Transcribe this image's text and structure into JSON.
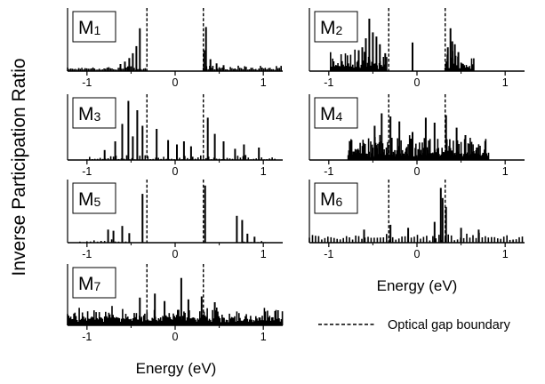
{
  "figure": {
    "ylabel": "Inverse Participation Ratio",
    "xlabel_left": "Energy (eV)",
    "xlabel_right": "Energy (eV)",
    "legend_label": "Optical gap boundary"
  },
  "chart_data": {
    "type": "bar",
    "x_ticks": [
      -1,
      0,
      1
    ],
    "x_tick_labels": [
      "-1",
      "0",
      "1"
    ],
    "xlim": [
      -1.22,
      1.22
    ],
    "gap_boundaries": [
      -0.32,
      0.32
    ],
    "grid": false,
    "legend_position": "bottom-right",
    "panels": [
      {
        "name": "M",
        "sub": "1",
        "spikes": [
          {
            "x": -0.4,
            "y": 0.72
          },
          {
            "x": -0.44,
            "y": 0.42
          },
          {
            "x": -0.48,
            "y": 0.3
          },
          {
            "x": -0.52,
            "y": 0.22
          },
          {
            "x": -0.57,
            "y": 0.16
          },
          {
            "x": -0.62,
            "y": 0.12
          },
          {
            "x": 0.35,
            "y": 0.74
          },
          {
            "x": 0.33,
            "y": 0.35
          },
          {
            "x": 0.4,
            "y": 0.2
          },
          {
            "x": 0.47,
            "y": 0.13
          },
          {
            "x": 0.55,
            "y": 0.1
          }
        ],
        "noise": {
          "ranges": [
            [
              -1.22,
              -0.32
            ],
            [
              0.32,
              1.22
            ]
          ],
          "step": 0.018,
          "base": 0.05,
          "amp": 0.06
        }
      },
      {
        "name": "M",
        "sub": "2",
        "spikes": [
          {
            "x": -0.54,
            "y": 0.88
          },
          {
            "x": -0.58,
            "y": 0.55
          },
          {
            "x": -0.5,
            "y": 0.65
          },
          {
            "x": -0.46,
            "y": 0.58
          },
          {
            "x": -0.62,
            "y": 0.4
          },
          {
            "x": -0.42,
            "y": 0.45
          },
          {
            "x": -0.66,
            "y": 0.35
          },
          {
            "x": -0.36,
            "y": 0.3
          },
          {
            "x": -0.05,
            "y": 0.48
          },
          {
            "x": 0.38,
            "y": 0.72
          },
          {
            "x": 0.4,
            "y": 0.5
          },
          {
            "x": 0.43,
            "y": 0.45
          },
          {
            "x": 0.35,
            "y": 0.4
          },
          {
            "x": 0.47,
            "y": 0.32
          }
        ],
        "noise": {
          "ranges": [
            [
              -0.98,
              -0.34
            ],
            [
              0.32,
              0.65
            ]
          ],
          "step": 0.012,
          "base": 0.1,
          "amp": 0.28
        }
      },
      {
        "name": "M",
        "sub": "3",
        "spikes": [
          {
            "x": -0.53,
            "y": 0.95
          },
          {
            "x": -0.43,
            "y": 0.8
          },
          {
            "x": -0.6,
            "y": 0.58
          },
          {
            "x": -0.37,
            "y": 0.55
          },
          {
            "x": -0.21,
            "y": 0.5
          },
          {
            "x": -0.48,
            "y": 0.38
          },
          {
            "x": -0.68,
            "y": 0.3
          },
          {
            "x": -0.08,
            "y": 0.32
          },
          {
            "x": 0.02,
            "y": 0.25
          },
          {
            "x": 0.1,
            "y": 0.3
          },
          {
            "x": 0.18,
            "y": 0.22
          },
          {
            "x": 0.37,
            "y": 0.68
          },
          {
            "x": 0.45,
            "y": 0.42
          },
          {
            "x": 0.55,
            "y": 0.3
          },
          {
            "x": 0.78,
            "y": 0.25
          },
          {
            "x": 0.95,
            "y": 0.2
          },
          {
            "x": -0.8,
            "y": 0.16
          },
          {
            "x": 0.68,
            "y": 0.18
          }
        ],
        "noise": {
          "ranges": [
            [
              -1.0,
              1.15
            ]
          ],
          "step": 0.03,
          "base": 0.02,
          "amp": 0.07
        }
      },
      {
        "name": "M",
        "sub": "4",
        "spikes": [
          {
            "x": -0.4,
            "y": 0.75
          },
          {
            "x": -0.3,
            "y": 0.7
          },
          {
            "x": 0.33,
            "y": 0.72
          },
          {
            "x": 0.1,
            "y": 0.68
          },
          {
            "x": -0.2,
            "y": 0.62
          },
          {
            "x": 0.2,
            "y": 0.6
          },
          {
            "x": -0.48,
            "y": 0.55
          },
          {
            "x": 0.45,
            "y": 0.52
          },
          {
            "x": 0.55,
            "y": 0.4
          },
          {
            "x": -0.05,
            "y": 0.45
          }
        ],
        "noise": {
          "ranges": [
            [
              -0.78,
              0.82
            ]
          ],
          "step": 0.008,
          "base": 0.12,
          "amp": 0.3
        }
      },
      {
        "name": "M",
        "sub": "5",
        "spikes": [
          {
            "x": 0.34,
            "y": 0.96
          },
          {
            "x": -0.37,
            "y": 0.82
          },
          {
            "x": 0.7,
            "y": 0.45
          },
          {
            "x": 0.76,
            "y": 0.38
          },
          {
            "x": -0.6,
            "y": 0.28
          },
          {
            "x": -0.7,
            "y": 0.2
          },
          {
            "x": -0.76,
            "y": 0.22
          },
          {
            "x": -0.52,
            "y": 0.16
          },
          {
            "x": 0.82,
            "y": 0.15
          },
          {
            "x": 0.9,
            "y": 0.1
          }
        ],
        "noise": {
          "ranges": [
            [
              -1.08,
              -0.5
            ],
            [
              0.78,
              1.05
            ]
          ],
          "step": 0.04,
          "base": 0.02,
          "amp": 0.05
        }
      },
      {
        "name": "M",
        "sub": "6",
        "spikes": [
          {
            "x": 0.27,
            "y": 0.92
          },
          {
            "x": 0.29,
            "y": 0.75
          },
          {
            "x": 0.33,
            "y": 0.6
          },
          {
            "x": 0.2,
            "y": 0.35
          },
          {
            "x": -0.3,
            "y": 0.3
          },
          {
            "x": -0.1,
            "y": 0.25
          },
          {
            "x": 0.5,
            "y": 0.25
          },
          {
            "x": -0.6,
            "y": 0.22
          },
          {
            "x": 0.7,
            "y": 0.22
          }
        ],
        "noise": {
          "ranges": [
            [
              -1.22,
              1.22
            ]
          ],
          "step": 0.035,
          "base": 0.1,
          "amp": 0.08
        }
      },
      {
        "name": "M",
        "sub": "7",
        "spikes": [
          {
            "x": 0.07,
            "y": 0.82
          },
          {
            "x": -0.23,
            "y": 0.55
          },
          {
            "x": 0.3,
            "y": 0.5
          },
          {
            "x": -0.4,
            "y": 0.48
          },
          {
            "x": 0.15,
            "y": 0.45
          },
          {
            "x": -0.12,
            "y": 0.42
          },
          {
            "x": 0.45,
            "y": 0.4
          }
        ],
        "noise": {
          "ranges": [
            [
              -1.22,
              1.22
            ]
          ],
          "step": 0.012,
          "base": 0.15,
          "amp": 0.2
        }
      }
    ]
  }
}
